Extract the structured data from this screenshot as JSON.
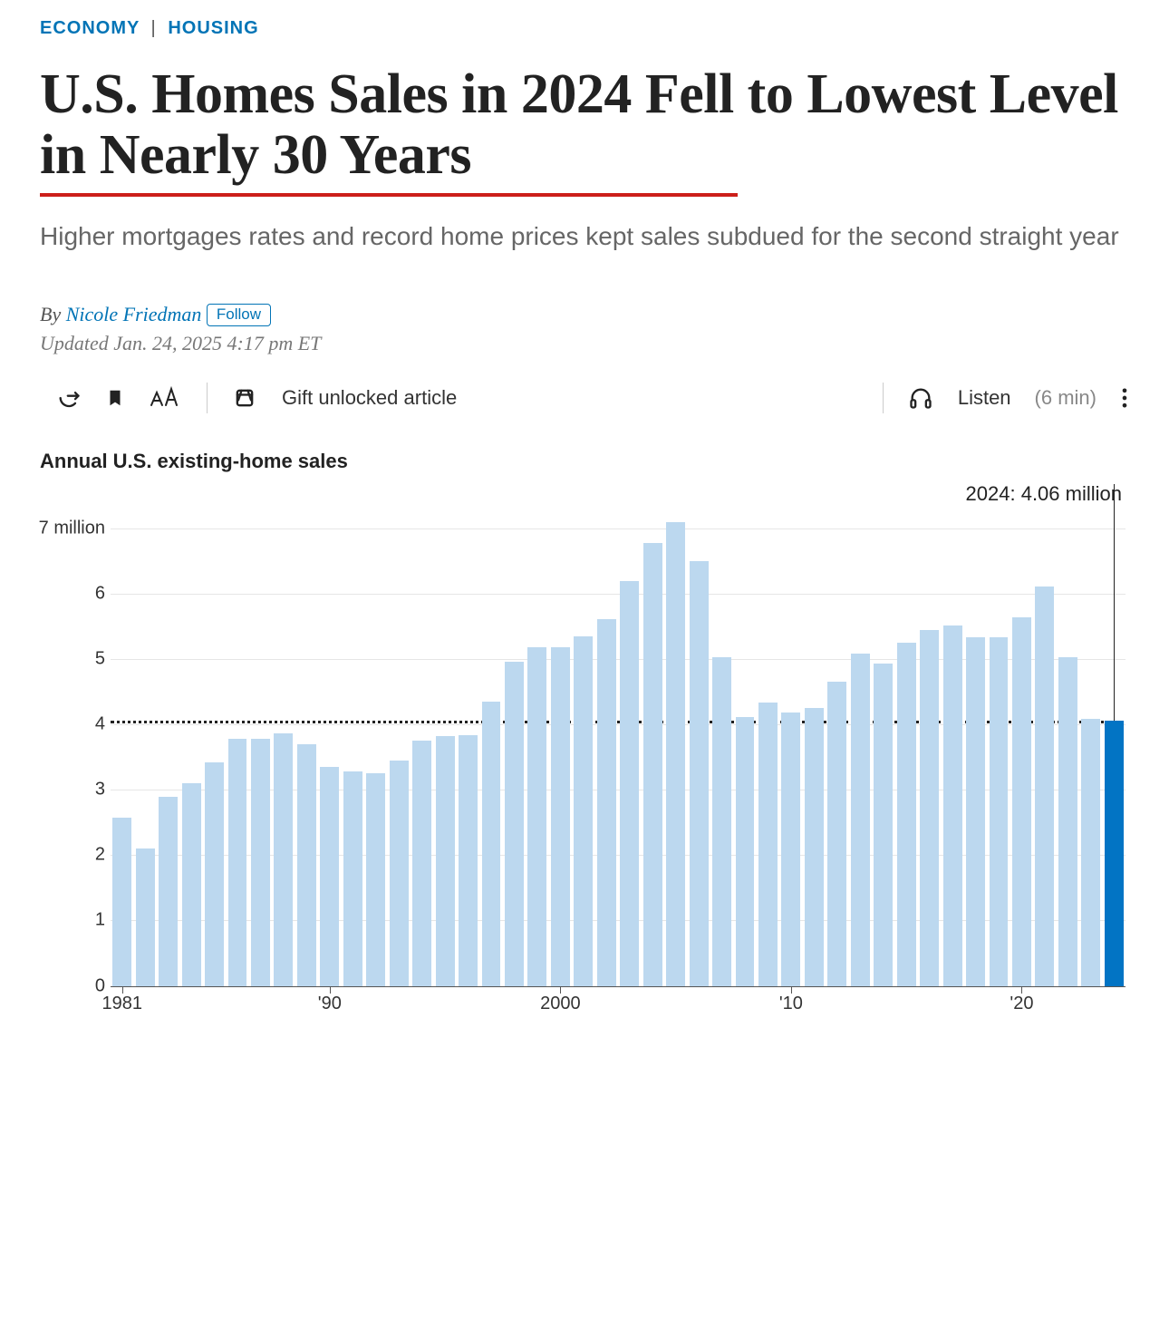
{
  "breadcrumb": {
    "item1": "ECONOMY",
    "sep": "|",
    "item2": "HOUSING"
  },
  "headline": "U.S. Homes Sales in 2024 Fell to Lowest Level in Nearly 30 Years",
  "underline_color": "#cc1f1a",
  "subhead": "Higher mortgages rates and record home prices kept sales subdued for the second straight year",
  "byline": {
    "by": "By ",
    "author": "Nicole Friedman",
    "follow": "Follow"
  },
  "dateline": "Updated Jan. 24, 2025 4:17 pm ET",
  "toolbar": {
    "gift_label": "Gift unlocked article",
    "listen_label": "Listen",
    "listen_duration": "(6 min)"
  },
  "chart": {
    "type": "bar",
    "title": "Annual U.S. existing-home sales",
    "annotation": "2024: 4.06 million",
    "y": {
      "min": 0,
      "max": 7.3,
      "ticks": [
        0,
        1,
        2,
        3,
        4,
        5,
        6,
        7
      ],
      "tick_labels": [
        "0",
        "1",
        "2",
        "3",
        "4",
        "5",
        "6",
        "7 million"
      ]
    },
    "reference_line": 4.06,
    "x_start_year": 1981,
    "x_ticks": [
      {
        "year": 1981,
        "label": "1981"
      },
      {
        "year": 1990,
        "label": "'90"
      },
      {
        "year": 2000,
        "label": "2000"
      },
      {
        "year": 2010,
        "label": "'10"
      },
      {
        "year": 2020,
        "label": "'20"
      }
    ],
    "bar_color": "#bcd8ef",
    "highlight_color": "#0274c4",
    "grid_color": "#e6e6e6",
    "background_color": "#ffffff",
    "title_fontsize": 22,
    "label_fontsize": 20,
    "bar_gap_ratio": 0.18,
    "series": [
      {
        "year": 1981,
        "value": 2.58
      },
      {
        "year": 1982,
        "value": 2.1
      },
      {
        "year": 1983,
        "value": 2.9
      },
      {
        "year": 1984,
        "value": 3.1
      },
      {
        "year": 1985,
        "value": 3.42
      },
      {
        "year": 1986,
        "value": 3.78
      },
      {
        "year": 1987,
        "value": 3.78
      },
      {
        "year": 1988,
        "value": 3.86
      },
      {
        "year": 1989,
        "value": 3.7
      },
      {
        "year": 1990,
        "value": 3.35
      },
      {
        "year": 1991,
        "value": 3.28
      },
      {
        "year": 1992,
        "value": 3.25
      },
      {
        "year": 1993,
        "value": 3.45
      },
      {
        "year": 1994,
        "value": 3.75
      },
      {
        "year": 1995,
        "value": 3.82
      },
      {
        "year": 1996,
        "value": 3.84
      },
      {
        "year": 1997,
        "value": 4.35
      },
      {
        "year": 1998,
        "value": 4.96
      },
      {
        "year": 1999,
        "value": 5.18
      },
      {
        "year": 2000,
        "value": 5.18
      },
      {
        "year": 2001,
        "value": 5.35
      },
      {
        "year": 2002,
        "value": 5.62
      },
      {
        "year": 2003,
        "value": 6.2
      },
      {
        "year": 2004,
        "value": 6.78
      },
      {
        "year": 2005,
        "value": 7.1
      },
      {
        "year": 2006,
        "value": 6.5
      },
      {
        "year": 2007,
        "value": 5.03
      },
      {
        "year": 2008,
        "value": 4.12
      },
      {
        "year": 2009,
        "value": 4.34
      },
      {
        "year": 2010,
        "value": 4.19
      },
      {
        "year": 2011,
        "value": 4.26
      },
      {
        "year": 2012,
        "value": 4.66
      },
      {
        "year": 2013,
        "value": 5.09
      },
      {
        "year": 2014,
        "value": 4.94
      },
      {
        "year": 2015,
        "value": 5.25
      },
      {
        "year": 2016,
        "value": 5.45
      },
      {
        "year": 2017,
        "value": 5.51
      },
      {
        "year": 2018,
        "value": 5.34
      },
      {
        "year": 2019,
        "value": 5.34
      },
      {
        "year": 2020,
        "value": 5.64
      },
      {
        "year": 2021,
        "value": 6.12
      },
      {
        "year": 2022,
        "value": 5.03
      },
      {
        "year": 2023,
        "value": 4.09
      },
      {
        "year": 2024,
        "value": 4.06,
        "highlight": true
      }
    ]
  }
}
